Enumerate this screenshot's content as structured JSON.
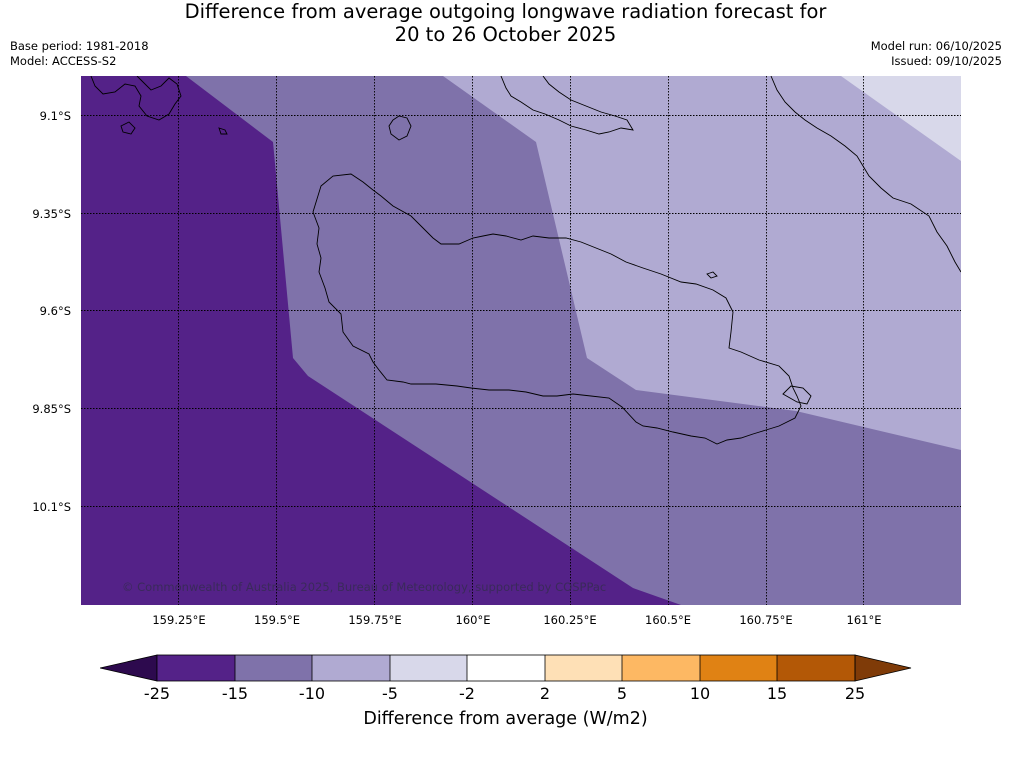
{
  "title": {
    "line1": "Difference from average outgoing longwave radiation forecast for",
    "line2": "20 to 26 October 2025"
  },
  "meta_left": {
    "base_period": "Base period: 1981-2018",
    "model": "Model: ACCESS-S2"
  },
  "meta_right": {
    "model_run": "Model run: 06/10/2025",
    "issued": "Issued: 09/10/2025"
  },
  "latitude_labels": [
    "9.1°S",
    "9.35°S",
    "9.6°S",
    "9.85°S",
    "10.1°S"
  ],
  "longitude_labels": [
    "159.25°E",
    "159.5°E",
    "159.75°E",
    "160°E",
    "160.25°E",
    "160.5°E",
    "160.75°E",
    "161°E"
  ],
  "copyright": "© Commonwealth of Australia 2025, Bureau of Meteorology, supported by COSPPac",
  "colorbar": {
    "label": "Difference from average (W/m2)",
    "ticks": [
      "-25",
      "-15",
      "-10",
      "-5",
      "-2",
      "2",
      "5",
      "10",
      "15",
      "25"
    ],
    "colors": [
      "#2d0a4e",
      "#542288",
      "#7f72aa",
      "#b0aad2",
      "#d8d8ea",
      "#ffffff",
      "#fee0b6",
      "#fdb863",
      "#e08214",
      "#b35806",
      "#7f3b08"
    ]
  },
  "regions": [
    {
      "name": "zone-minus-15-to-25",
      "color": "#542288"
    },
    {
      "name": "zone-minus-10-to-15",
      "color": "#7f72aa"
    },
    {
      "name": "zone-minus-5-to-10",
      "color": "#b0aad2"
    },
    {
      "name": "zone-minus-2-to-5",
      "color": "#d8d8ea"
    }
  ]
}
